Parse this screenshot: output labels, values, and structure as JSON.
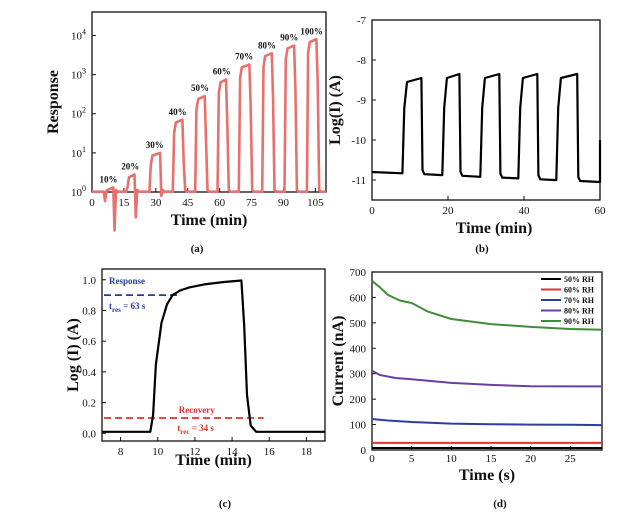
{
  "chart_data": [
    {
      "panel_label": "(a)",
      "type": "line",
      "xlabel": "Time (min)",
      "ylabel": "Response",
      "xlim": [
        0,
        110
      ],
      "ylim_log10": [
        0,
        4.6
      ],
      "x_ticks": [
        "0",
        "15",
        "30",
        "45",
        "60",
        "75",
        "90",
        "105"
      ],
      "y_ticks": [
        "10^0",
        "10^1",
        "10^2",
        "10^3",
        "10^4"
      ],
      "color": "#e8706f",
      "pulses": [
        {
          "label": "10%",
          "t_on": 5.5,
          "t_off": 10,
          "response": 1.3
        },
        {
          "label": "20%",
          "t_on": 16,
          "t_off": 20,
          "response": 2.8
        },
        {
          "label": "30%",
          "t_on": 27,
          "t_off": 32,
          "response": 10
        },
        {
          "label": "40%",
          "t_on": 38,
          "t_off": 42.5,
          "response": 70
        },
        {
          "label": "50%",
          "t_on": 48.5,
          "t_off": 53,
          "response": 280
        },
        {
          "label": "60%",
          "t_on": 59,
          "t_off": 63,
          "response": 750
        },
        {
          "label": "70%",
          "t_on": 69,
          "t_off": 74,
          "response": 1800
        },
        {
          "label": "80%",
          "t_on": 80,
          "t_off": 84.5,
          "response": 3500
        },
        {
          "label": "90%",
          "t_on": 90.5,
          "t_off": 95,
          "response": 5500
        },
        {
          "label": "100%",
          "t_on": 101,
          "t_off": 105.5,
          "response": 8000
        }
      ]
    },
    {
      "panel_label": "(b)",
      "type": "line",
      "xlabel": "Time (min)",
      "ylabel": "Log(I) (A)",
      "xlim": [
        0,
        60
      ],
      "ylim": [
        -11.5,
        -7
      ],
      "x_ticks": [
        0,
        20,
        40,
        60
      ],
      "y_ticks": [
        -7,
        -8,
        -9,
        -10,
        -11
      ],
      "color": "#000000",
      "baseline": [
        -10.8,
        -11.05
      ],
      "pulses": [
        {
          "t_on": 8,
          "t_off": 13,
          "high": -8.45
        },
        {
          "t_on": 18.5,
          "t_off": 23,
          "high": -8.35
        },
        {
          "t_on": 28.5,
          "t_off": 33.5,
          "high": -8.35
        },
        {
          "t_on": 38.5,
          "t_off": 43.5,
          "high": -8.35
        },
        {
          "t_on": 48.5,
          "t_off": 54,
          "high": -8.35
        }
      ]
    },
    {
      "panel_label": "(c)",
      "type": "line",
      "xlabel": "Time (min)",
      "ylabel": "Log (I) (A)",
      "xlim": [
        7,
        19
      ],
      "ylim": [
        -0.05,
        1.07
      ],
      "x_ticks": [
        8,
        10,
        12,
        14,
        16,
        18
      ],
      "y_ticks": [
        "0.0",
        "0.2",
        "0.4",
        "0.6",
        "0.8",
        "1.0"
      ],
      "color": "#000000",
      "x": [
        7,
        9.6,
        9.75,
        9.9,
        10.2,
        10.5,
        10.8,
        11.2,
        11.7,
        12.5,
        13.5,
        14.5,
        14.65,
        14.8,
        15,
        15.3,
        16,
        19
      ],
      "y": [
        0.01,
        0.01,
        0.12,
        0.45,
        0.72,
        0.84,
        0.9,
        0.93,
        0.95,
        0.97,
        0.985,
        0.995,
        0.7,
        0.25,
        0.05,
        0.01,
        0.01,
        0.01
      ],
      "annotations": {
        "response_label": "Response",
        "response_time": "t",
        "response_time_sub": "res",
        "response_time_value": " = 63 s",
        "response_level": 0.9,
        "response_color": "#2a3a9c",
        "recovery_label": "Recovery",
        "recovery_time": "t",
        "recovery_time_sub": "rec",
        "recovery_time_value": " = 34 s",
        "recovery_level": 0.1,
        "recovery_color": "#e3322b"
      }
    },
    {
      "panel_label": "(d)",
      "type": "line",
      "xlabel": "Time (s)",
      "ylabel": "Current (nA)",
      "xlim": [
        0,
        29
      ],
      "ylim": [
        0,
        700
      ],
      "x_ticks": [
        0,
        5,
        10,
        15,
        20,
        25
      ],
      "y_ticks": [
        0,
        100,
        200,
        300,
        400,
        500,
        600,
        700
      ],
      "legend_position": "top-right",
      "series": [
        {
          "name": "50% RH",
          "color": "#000000",
          "x": [
            0,
            29
          ],
          "y": [
            8,
            8
          ]
        },
        {
          "name": "60% RH",
          "color": "#e3322b",
          "x": [
            0,
            29
          ],
          "y": [
            28,
            28
          ]
        },
        {
          "name": "70% RH",
          "color": "#2e3ea0",
          "x": [
            0,
            2,
            5,
            10,
            15,
            20,
            25,
            29
          ],
          "y": [
            122,
            116,
            110,
            104,
            101,
            100,
            99,
            98
          ]
        },
        {
          "name": "80% RH",
          "color": "#6a3fa0",
          "x": [
            0,
            1,
            3,
            5,
            10,
            15,
            20,
            25,
            29
          ],
          "y": [
            312,
            295,
            283,
            278,
            264,
            256,
            251,
            250,
            250
          ]
        },
        {
          "name": "90% RH",
          "color": "#3f8c3a",
          "x": [
            0,
            1,
            2,
            3.5,
            5,
            7,
            10,
            15,
            20,
            25,
            29
          ],
          "y": [
            665,
            640,
            610,
            588,
            578,
            545,
            515,
            495,
            484,
            476,
            473
          ]
        }
      ]
    }
  ]
}
